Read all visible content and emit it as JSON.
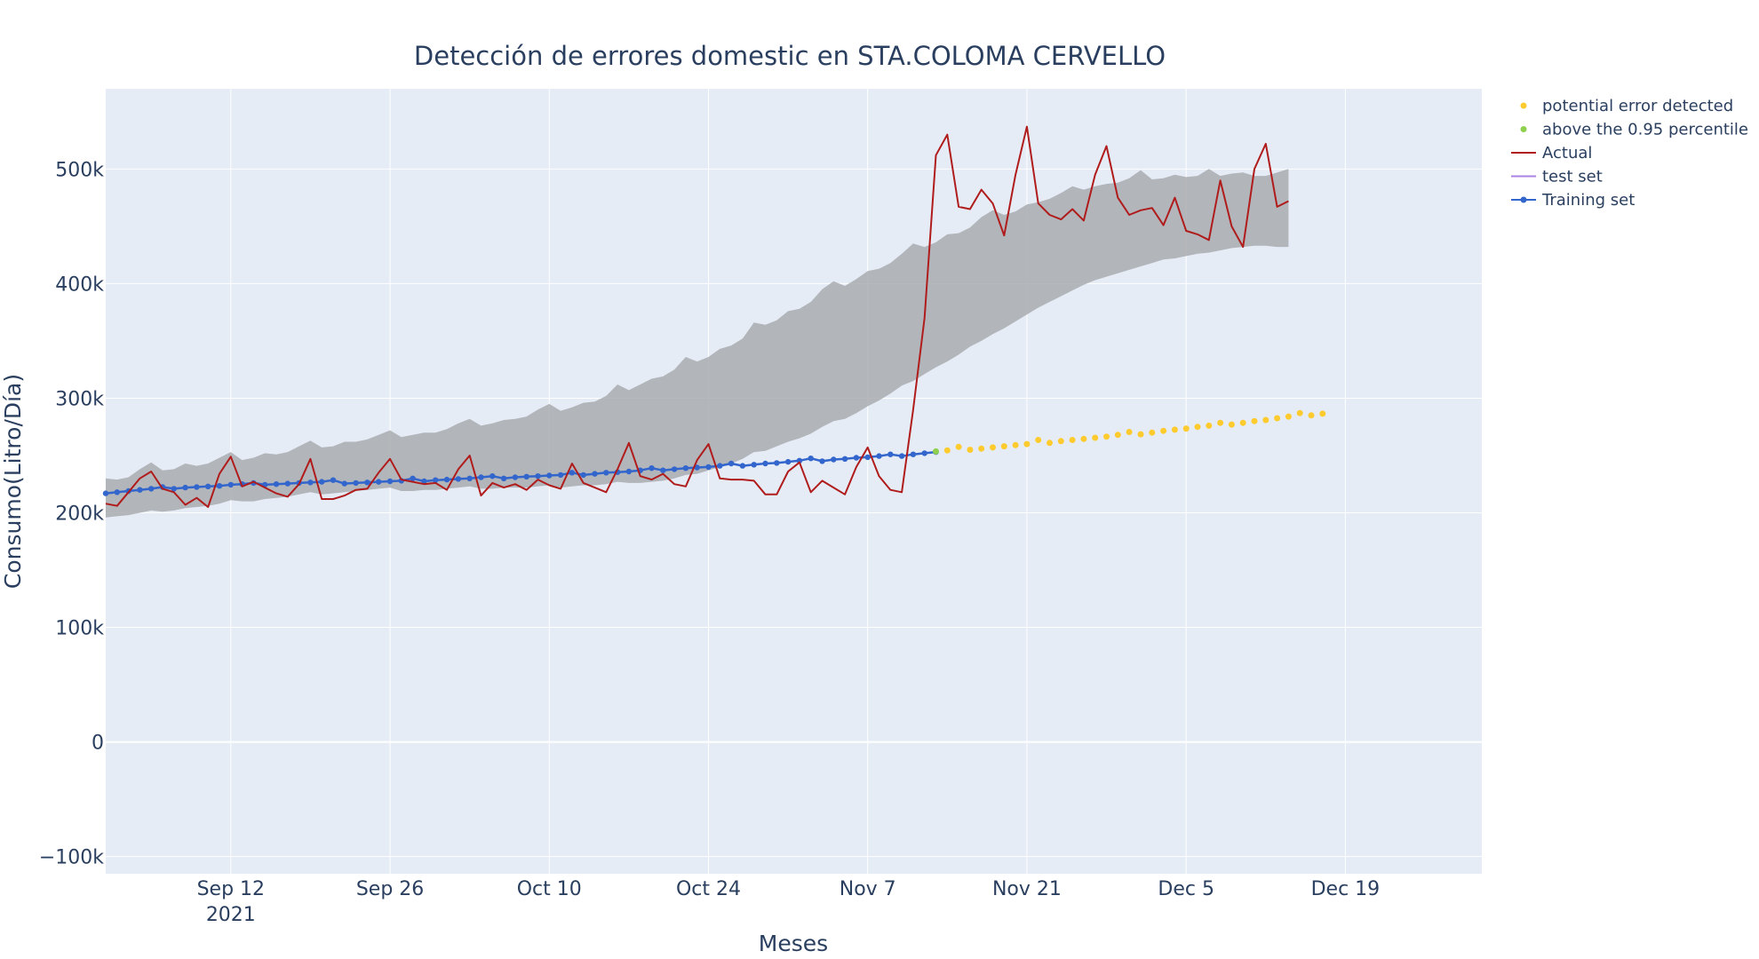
{
  "chart_data": {
    "type": "line",
    "title": "Detección de errores domestic en STA.COLOMA CERVELLO",
    "xlabel": "Meses",
    "ylabel": "Consumo(Litro/Día)",
    "x_start_date": "2021-09-01",
    "x_range": [
      "2021-09-01",
      "2021-12-31"
    ],
    "ylim": [
      -115000,
      570000
    ],
    "x_ticks": [
      {
        "date": "2021-09-12",
        "label": "Sep 12",
        "sublabel": "2021"
      },
      {
        "date": "2021-09-26",
        "label": "Sep 26",
        "sublabel": ""
      },
      {
        "date": "2021-10-10",
        "label": "Oct 10",
        "sublabel": ""
      },
      {
        "date": "2021-10-24",
        "label": "Oct 24",
        "sublabel": ""
      },
      {
        "date": "2021-11-07",
        "label": "Nov 7",
        "sublabel": ""
      },
      {
        "date": "2021-11-21",
        "label": "Nov 21",
        "sublabel": ""
      },
      {
        "date": "2021-12-05",
        "label": "Dec 5",
        "sublabel": ""
      },
      {
        "date": "2021-12-19",
        "label": "Dec 19",
        "sublabel": ""
      }
    ],
    "y_ticks": [
      {
        "value": -100000,
        "label": "−100k"
      },
      {
        "value": 0,
        "label": "0"
      },
      {
        "value": 100000,
        "label": "100k"
      },
      {
        "value": 200000,
        "label": "200k"
      },
      {
        "value": 300000,
        "label": "300k"
      },
      {
        "value": 400000,
        "label": "400k"
      },
      {
        "value": 500000,
        "label": "500k"
      }
    ],
    "grid": true,
    "legend_position": "top-right",
    "colors": {
      "plot_bg": "#e5ecf6",
      "grid": "#ffffff",
      "band": "#a9acaf",
      "actual": "#b01c1c",
      "training": "#3366cc",
      "test": "#ab82e6",
      "above": "#8fd14f",
      "error": "#fecb2f"
    },
    "series": [
      {
        "name": "Training set",
        "kind": "line+markers",
        "x_start_day": 0,
        "values": [
          217000,
          218000,
          219000,
          220000,
          221000,
          222500,
          221000,
          222000,
          222500,
          223000,
          223500,
          224500,
          225000,
          226000,
          224500,
          225000,
          225500,
          226000,
          226500,
          227000,
          228500,
          225500,
          226000,
          226500,
          227000,
          227500,
          228000,
          230000,
          227500,
          228500,
          229000,
          229500,
          230000,
          231000,
          232000,
          230000,
          231000,
          231500,
          232000,
          232500,
          233000,
          235000,
          233000,
          234000,
          235000,
          235500,
          236000,
          237000,
          239000,
          237000,
          238000,
          239000,
          239500,
          240000,
          241000,
          243000,
          241000,
          242000,
          243000,
          243500,
          244500,
          245500,
          247500,
          245000,
          246500,
          247000,
          248000,
          248500,
          249500,
          251000,
          249500,
          251000,
          252000,
          253000
        ]
      },
      {
        "name": "above the 0.95 percentile",
        "kind": "markers",
        "points": [
          {
            "day": 73,
            "value": 253500
          }
        ]
      },
      {
        "name": "potential error detected",
        "kind": "markers",
        "x_start_day": 74,
        "values": [
          254500,
          257500,
          255000,
          256000,
          257000,
          258000,
          259000,
          260000,
          263500,
          261000,
          262500,
          263500,
          264500,
          265500,
          266500,
          268000,
          270500,
          268500,
          270000,
          271500,
          272500,
          273500,
          275000,
          276000,
          278500,
          277000,
          278500,
          280000,
          281000,
          282500,
          284000,
          287000,
          285000,
          286500
        ]
      },
      {
        "name": "test set",
        "kind": "line",
        "values": []
      },
      {
        "name": "Actual",
        "kind": "line",
        "x_start_day": 0,
        "values": [
          208000,
          206000,
          218000,
          230000,
          236000,
          221000,
          218000,
          207000,
          213000,
          205000,
          234000,
          249000,
          223000,
          227000,
          222000,
          217000,
          214000,
          225000,
          247000,
          212000,
          212000,
          215000,
          220000,
          221000,
          235000,
          247000,
          229000,
          227000,
          225000,
          226000,
          220000,
          238000,
          250000,
          215000,
          226000,
          222000,
          225000,
          220000,
          229000,
          224000,
          221000,
          243000,
          226000,
          222000,
          218000,
          238000,
          261000,
          232000,
          229000,
          234000,
          225000,
          223000,
          246000,
          260000,
          230000,
          229000,
          229000,
          228000,
          216000,
          216000,
          236000,
          244000,
          218000,
          228000,
          222000,
          216000,
          240000,
          257000,
          232000,
          220000,
          218000,
          290000,
          370000,
          512000,
          530000,
          467000,
          465000,
          482000,
          470000,
          442000,
          495000,
          537000,
          470000,
          460000,
          456000,
          465000,
          455000,
          495000,
          520000,
          475000,
          460000,
          464000,
          466000,
          451000,
          475000,
          446000,
          443000,
          438000,
          490000,
          450000,
          432000,
          500000,
          522000,
          467000,
          472000
        ]
      }
    ],
    "band": {
      "name": "",
      "x_start_day": 0,
      "upper": [
        230000,
        229000,
        231000,
        238000,
        244000,
        237000,
        238000,
        243000,
        241000,
        243000,
        248000,
        253000,
        246000,
        248000,
        252000,
        251000,
        253000,
        258000,
        263000,
        257000,
        258000,
        262000,
        262000,
        264000,
        268000,
        272000,
        266000,
        268000,
        270000,
        270000,
        273000,
        278000,
        282000,
        276000,
        278000,
        281000,
        282000,
        284000,
        290000,
        295000,
        289000,
        292000,
        296000,
        297000,
        302000,
        312000,
        307000,
        312000,
        317000,
        319000,
        325000,
        336000,
        332000,
        336000,
        343000,
        346000,
        352000,
        366000,
        364000,
        368000,
        376000,
        378000,
        384000,
        395000,
        402000,
        398000,
        404000,
        411000,
        413000,
        418000,
        426000,
        435000,
        432000,
        436000,
        443000,
        444000,
        449000,
        458000,
        464000,
        460000,
        463000,
        469000,
        471000,
        474000,
        479000,
        485000,
        482000,
        485000,
        487000,
        488000,
        492000,
        499000,
        491000,
        492000,
        495000,
        493000,
        494000,
        500000,
        494000,
        496000,
        497000,
        494000,
        494000,
        497000,
        500000
      ],
      "lower": [
        196000,
        197000,
        198000,
        200000,
        202000,
        201000,
        202000,
        204000,
        205000,
        206000,
        208000,
        211000,
        210000,
        210000,
        212000,
        213000,
        214000,
        216000,
        218000,
        216000,
        217000,
        218000,
        219000,
        220000,
        221000,
        222000,
        219000,
        219000,
        220000,
        220000,
        221000,
        222000,
        223000,
        221000,
        221000,
        222000,
        222000,
        222000,
        223000,
        224000,
        222000,
        223000,
        224000,
        224000,
        225000,
        227000,
        226000,
        226000,
        227000,
        228000,
        230000,
        233000,
        234000,
        237000,
        240000,
        243000,
        247000,
        253000,
        254000,
        258000,
        262000,
        265000,
        269000,
        275000,
        280000,
        282000,
        287000,
        293000,
        298000,
        304000,
        311000,
        315000,
        321000,
        327000,
        332000,
        338000,
        345000,
        350000,
        356000,
        361000,
        367000,
        373000,
        379000,
        384000,
        389000,
        394000,
        399000,
        403000,
        406000,
        409000,
        412000,
        415000,
        418000,
        421000,
        422000,
        424000,
        426000,
        427000,
        429000,
        431000,
        432000,
        433000,
        433000,
        432000,
        432000
      ]
    }
  }
}
